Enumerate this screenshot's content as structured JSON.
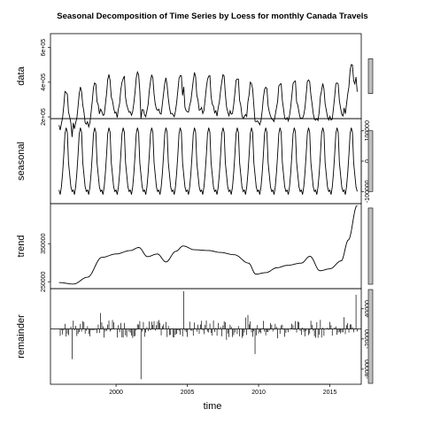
{
  "chart_data": {
    "type": "line",
    "title": "Seasonal Decomposition of Time Series by Loess for monthly Canada Travels",
    "xlabel": "time",
    "x_range": [
      1995.4,
      2017.2
    ],
    "x_ticks": [
      {
        "value": 2000,
        "label": "2000"
      },
      {
        "value": 2005,
        "label": "2005"
      },
      {
        "value": 2010,
        "label": "2010"
      },
      {
        "value": 2015,
        "label": "2015"
      }
    ],
    "start_year": 1996,
    "end_year": 2016,
    "months_per_year": 12,
    "trend_knots": [
      [
        1996.0,
        248000
      ],
      [
        1997.0,
        244000
      ],
      [
        1998.0,
        262000
      ],
      [
        1999.0,
        314000
      ],
      [
        2000.0,
        323000
      ],
      [
        2001.0,
        332000
      ],
      [
        2001.6,
        340000
      ],
      [
        2002.2,
        316000
      ],
      [
        2002.9,
        323000
      ],
      [
        2003.5,
        302000
      ],
      [
        2004.2,
        330000
      ],
      [
        2004.7,
        344000
      ],
      [
        2005.5,
        334000
      ],
      [
        2006.5,
        332000
      ],
      [
        2007.3,
        327000
      ],
      [
        2008.3,
        321000
      ],
      [
        2009.3,
        299000
      ],
      [
        2009.8,
        270000
      ],
      [
        2010.5,
        274000
      ],
      [
        2011.3,
        287000
      ],
      [
        2012.0,
        293000
      ],
      [
        2013.0,
        299000
      ],
      [
        2013.6,
        317000
      ],
      [
        2014.3,
        279000
      ],
      [
        2015.0,
        284000
      ],
      [
        2015.8,
        305000
      ],
      [
        2016.3,
        360000
      ],
      [
        2016.9,
        450000
      ]
    ],
    "seasonal_shape": [
      -95000,
      -110000,
      -85000,
      -40000,
      20000,
      90000,
      110000,
      95000,
      -5000,
      -45000,
      -85000,
      -100000
    ],
    "remainder_spikes": [
      {
        "x": 1996.9,
        "value": -60000
      },
      {
        "x": 2001.75,
        "value": -100000
      },
      {
        "x": 2004.75,
        "value": 75000
      },
      {
        "x": 2009.75,
        "value": -50000
      },
      {
        "x": 2016.8,
        "value": 68000
      }
    ],
    "panels": [
      {
        "name": "data",
        "label": "data",
        "ylim": [
          190000,
          680000
        ],
        "ticks": [
          {
            "value": 200000,
            "label": "2e+05"
          },
          {
            "value": 400000,
            "label": "4e+05"
          },
          {
            "value": 600000,
            "label": "6e+05"
          }
        ],
        "axis_side": "left",
        "scale_bar": 200000
      },
      {
        "name": "seasonal",
        "label": "seasonal",
        "ylim": [
          -140000,
          140000
        ],
        "ticks": [
          {
            "value": -100000,
            "label": "-100000"
          },
          {
            "value": 0,
            "label": "0"
          },
          {
            "value": 100000,
            "label": "100000"
          }
        ],
        "axis_side": "right",
        "scale_bar": 200000
      },
      {
        "name": "trend",
        "label": "trend",
        "ylim": [
          232000,
          455000
        ],
        "ticks": [
          {
            "value": 250000,
            "label": "250000"
          },
          {
            "value": 350000,
            "label": "350000"
          }
        ],
        "axis_side": "left",
        "scale_bar": 200000
      },
      {
        "name": "remainder",
        "label": "remainder",
        "ylim": [
          -110000,
          80000
        ],
        "ticks": [
          {
            "value": -80000,
            "label": "-80000"
          },
          {
            "value": -20000,
            "label": "-20000"
          },
          {
            "value": 40000,
            "label": "40000"
          }
        ],
        "axis_side": "right",
        "scale_bar": 200000
      }
    ]
  }
}
